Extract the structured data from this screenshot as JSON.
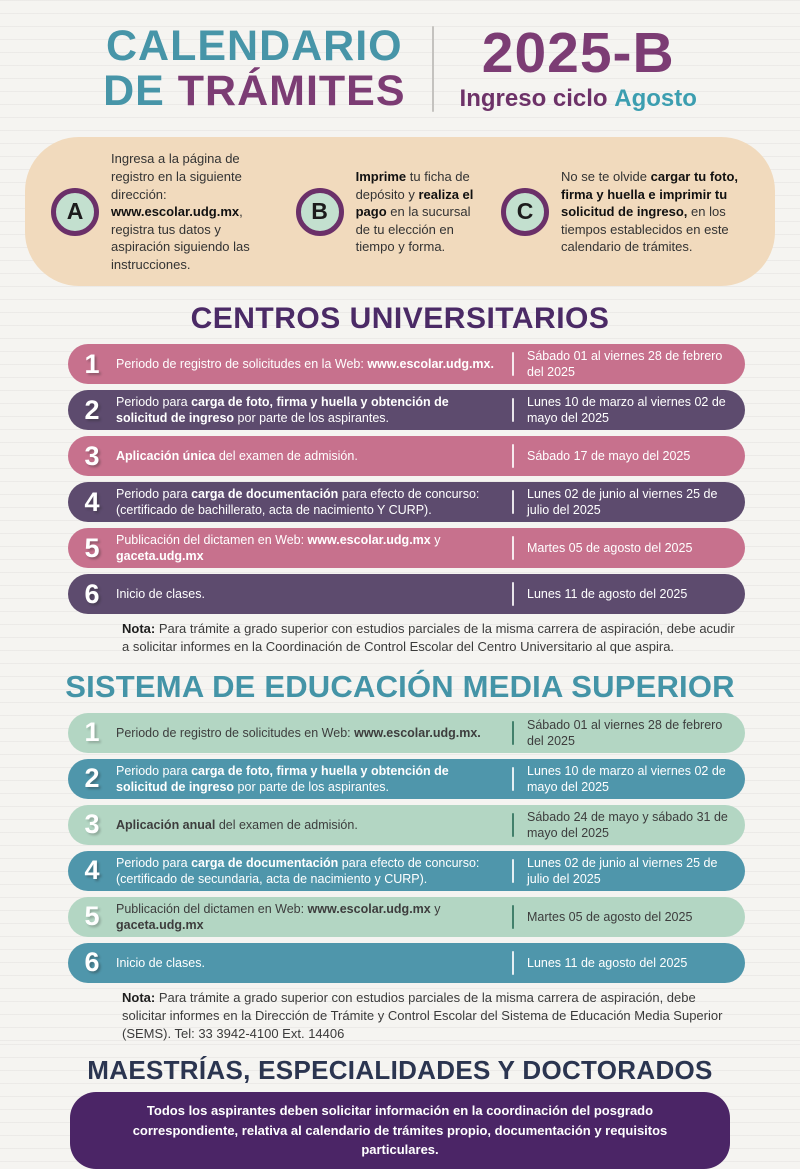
{
  "colors": {
    "teal": "#4795a8",
    "purple": "#7c3c74",
    "dark_purple_header": "#4b2a66",
    "pink_row": "#c7718d",
    "violet_row": "#5d4b6e",
    "mint_row": "#b3d6c3",
    "teal_row": "#4f96ab",
    "beige_banner": "#f1dabd",
    "badge_ring": "#6b3069",
    "badge_fill": "#c3e0cf",
    "navy_header": "#2b3550",
    "posgrados_banner": "#4b2566"
  },
  "header": {
    "title_line1": "CALENDARIO",
    "title_de": "DE ",
    "title_tramites": "TRÁMITES",
    "cycle": "2025-B",
    "subtitle_prefix": "Ingreso ciclo ",
    "subtitle_month": "Agosto"
  },
  "steps": [
    {
      "letter": "A",
      "text": [
        {
          "t": "Ingresa a la página de registro en la siguiente dirección: "
        },
        {
          "t": "www.escolar.udg.mx",
          "b": true
        },
        {
          "t": ", registra tus datos y aspiración siguiendo las instrucciones."
        }
      ]
    },
    {
      "letter": "B",
      "text": [
        {
          "t": "Imprime",
          "b": true
        },
        {
          "t": " tu ficha de depósito y "
        },
        {
          "t": "realiza el pago",
          "b": true
        },
        {
          "t": " en la sucursal de tu elección en tiempo y forma."
        }
      ]
    },
    {
      "letter": "C",
      "text": [
        {
          "t": "No se te olvide "
        },
        {
          "t": "cargar tu foto, firma y huella e imprimir tu solicitud de ingreso,",
          "b": true
        },
        {
          "t": " en los tiempos establecidos en este calendario de trámites."
        }
      ]
    }
  ],
  "centros": {
    "title": "CENTROS UNIVERSITARIOS",
    "rows": [
      {
        "num": "1",
        "desc": [
          {
            "t": "Periodo de registro de solicitudes en la Web: "
          },
          {
            "t": "www.escolar.udg.mx.",
            "b": true
          }
        ],
        "date": "Sábado 01 al viernes 28 de febrero del 2025"
      },
      {
        "num": "2",
        "desc": [
          {
            "t": "Periodo para "
          },
          {
            "t": "carga de foto, firma y huella y obtención de solicitud de ingreso",
            "b": true
          },
          {
            "t": " por parte de los aspirantes."
          }
        ],
        "date": "Lunes 10 de marzo al viernes 02 de mayo del 2025"
      },
      {
        "num": "3",
        "desc": [
          {
            "t": "Aplicación única",
            "b": true
          },
          {
            "t": " del examen de admisión."
          }
        ],
        "date": "Sábado 17 de mayo del 2025"
      },
      {
        "num": "4",
        "desc": [
          {
            "t": "Periodo para "
          },
          {
            "t": "carga de documentación",
            "b": true
          },
          {
            "t": " para efecto de concurso: (certificado de bachillerato, acta de nacimiento Y CURP)."
          }
        ],
        "date": "Lunes 02 de junio al viernes 25 de julio del 2025"
      },
      {
        "num": "5",
        "desc": [
          {
            "t": "Publicación del dictamen en Web: "
          },
          {
            "t": "www.escolar.udg.mx",
            "b": true
          },
          {
            "t": " y "
          },
          {
            "t": "gaceta.udg.mx",
            "b": true
          }
        ],
        "date": "Martes 05 de agosto del 2025"
      },
      {
        "num": "6",
        "desc": [
          {
            "t": "Inicio de clases."
          }
        ],
        "date": "Lunes 11 de agosto del 2025"
      }
    ],
    "note": [
      {
        "t": "Nota:",
        "b": true
      },
      {
        "t": " Para trámite a grado superior con estudios parciales de la misma carrera de aspiración, debe acudir a solicitar informes en la Coordinación de Control Escolar del Centro Universitario al que aspira."
      }
    ]
  },
  "sems": {
    "title": "SISTEMA DE EDUCACIÓN MEDIA SUPERIOR",
    "rows": [
      {
        "num": "1",
        "desc": [
          {
            "t": "Periodo de registro de solicitudes en Web: "
          },
          {
            "t": "www.escolar.udg.mx.",
            "b": true
          }
        ],
        "date": "Sábado 01 al viernes 28 de febrero del 2025"
      },
      {
        "num": "2",
        "desc": [
          {
            "t": "Periodo para "
          },
          {
            "t": "carga de foto, firma y huella y obtención de solicitud de ingreso",
            "b": true
          },
          {
            "t": " por parte de los aspirantes."
          }
        ],
        "date": "Lunes 10 de marzo al viernes 02 de mayo del 2025"
      },
      {
        "num": "3",
        "desc": [
          {
            "t": "Aplicación anual",
            "b": true
          },
          {
            "t": " del examen de admisión."
          }
        ],
        "date": "Sábado 24 de mayo y sábado 31 de mayo del 2025"
      },
      {
        "num": "4",
        "desc": [
          {
            "t": "Periodo para "
          },
          {
            "t": "carga de documentación",
            "b": true
          },
          {
            "t": " para efecto de concurso: (certificado de secundaria, acta de nacimiento y CURP)."
          }
        ],
        "date": "Lunes 02 de junio al viernes 25 de julio del 2025"
      },
      {
        "num": "5",
        "desc": [
          {
            "t": "Publicación del dictamen en Web: "
          },
          {
            "t": "www.escolar.udg.mx",
            "b": true
          },
          {
            "t": " y "
          },
          {
            "t": "gaceta.udg.mx",
            "b": true
          }
        ],
        "date": "Martes 05 de agosto del 2025"
      },
      {
        "num": "6",
        "desc": [
          {
            "t": "Inicio de clases."
          }
        ],
        "date": "Lunes 11 de agosto del 2025"
      }
    ],
    "note": [
      {
        "t": "Nota:",
        "b": true
      },
      {
        "t": " Para trámite a grado superior con estudios parciales de la misma carrera de aspiración, debe solicitar informes en la Dirección de Trámite y Control Escolar del Sistema de Educación Media Superior (SEMS). Tel: 33 3942-4100 Ext. 14406"
      }
    ]
  },
  "posgrados": {
    "title": "MAESTRÍAS, ESPECIALIDADES Y DOCTORADOS",
    "banner": "Todos los aspirantes deben solicitar información en la coordinación del posgrado correspondiente, relativa al calendario de trámites propio, documentación y requisitos particulares."
  }
}
